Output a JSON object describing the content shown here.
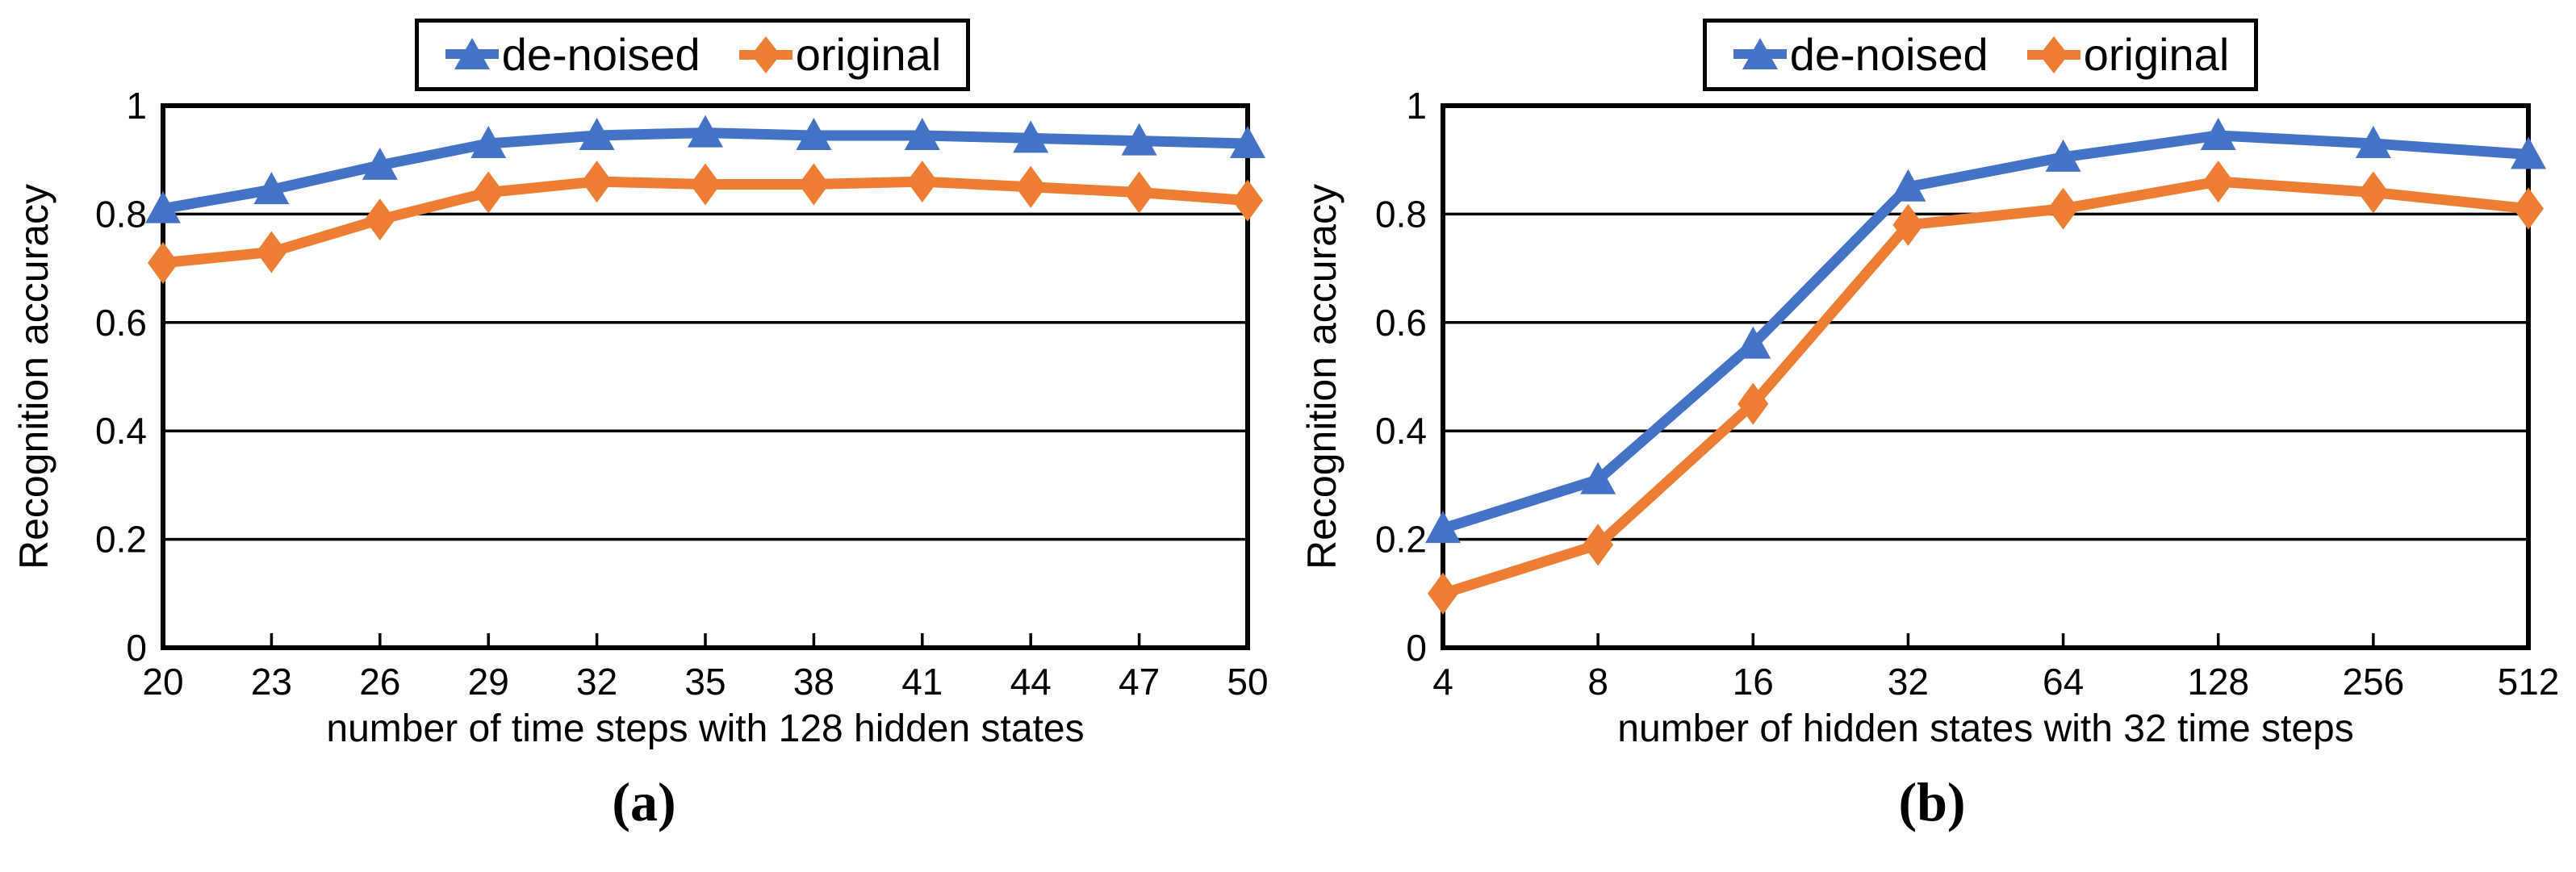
{
  "figure": {
    "background": "#ffffff",
    "text_color": "#000000",
    "axis_color": "#000000"
  },
  "chart_data": [
    {
      "type": "line",
      "caption": "(a)",
      "xlabel": "number of time steps with 128 hidden states",
      "ylabel": "Recognition accuracy",
      "categories": [
        "20",
        "23",
        "26",
        "29",
        "32",
        "35",
        "38",
        "41",
        "44",
        "47",
        "50"
      ],
      "series": [
        {
          "name": "de-noised",
          "color": "#4472C4",
          "marker": "triangle",
          "values": [
            0.81,
            0.845,
            0.89,
            0.93,
            0.945,
            0.95,
            0.945,
            0.945,
            0.94,
            0.935,
            0.93
          ]
        },
        {
          "name": "original",
          "color": "#ED7D31",
          "marker": "diamond",
          "values": [
            0.71,
            0.73,
            0.79,
            0.84,
            0.86,
            0.855,
            0.855,
            0.86,
            0.85,
            0.84,
            0.825
          ]
        }
      ],
      "ylim": [
        0,
        1
      ],
      "yticks": [
        0,
        0.2,
        0.4,
        0.6,
        0.8,
        1
      ],
      "ytick_labels": [
        "0",
        "0.2",
        "0.4",
        "0.6",
        "0.8",
        "1"
      ],
      "grid": true,
      "legend_position": "top"
    },
    {
      "type": "line",
      "caption": "(b)",
      "xlabel": "number of hidden states with 32 time steps",
      "ylabel": "Recognition accuracy",
      "categories": [
        "4",
        "8",
        "16",
        "32",
        "64",
        "128",
        "256",
        "512"
      ],
      "series": [
        {
          "name": "de-noised",
          "color": "#4472C4",
          "marker": "triangle",
          "values": [
            0.22,
            0.31,
            0.56,
            0.85,
            0.905,
            0.945,
            0.93,
            0.91
          ]
        },
        {
          "name": "original",
          "color": "#ED7D31",
          "marker": "diamond",
          "values": [
            0.1,
            0.19,
            0.45,
            0.78,
            0.81,
            0.86,
            0.84,
            0.81
          ]
        }
      ],
      "ylim": [
        0,
        1
      ],
      "yticks": [
        0,
        0.2,
        0.4,
        0.6,
        0.8,
        1
      ],
      "ytick_labels": [
        "0",
        "0.2",
        "0.4",
        "0.6",
        "0.8",
        "1"
      ],
      "grid": true,
      "legend_position": "top"
    }
  ]
}
